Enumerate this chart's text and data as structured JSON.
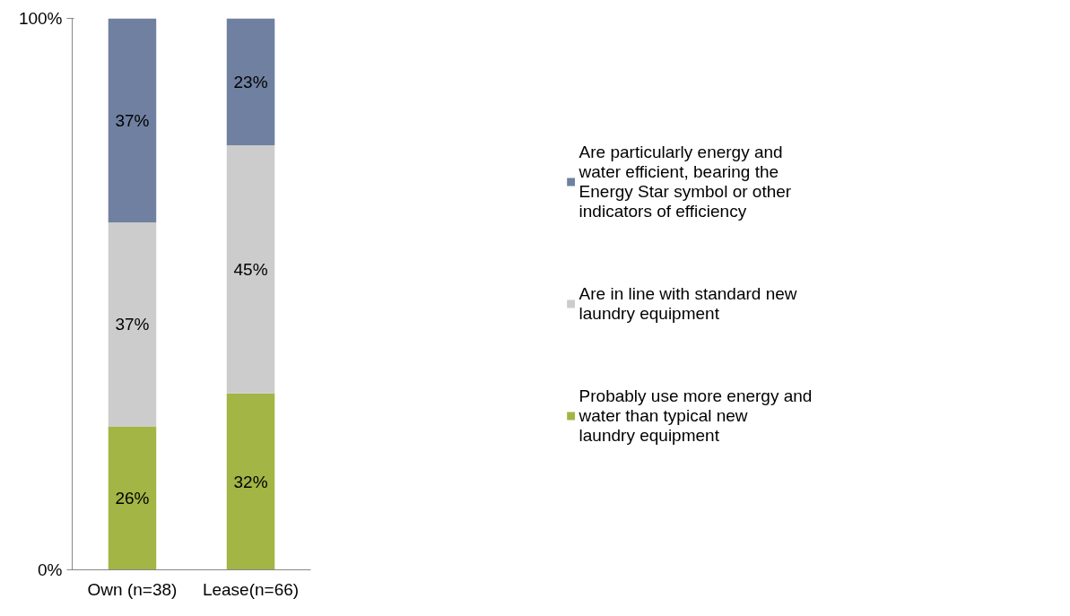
{
  "chart_data": {
    "type": "bar",
    "stacked": true,
    "categories": [
      "Own (n=38)",
      "Lease(n=66)"
    ],
    "series": [
      {
        "name": "Probably use more energy and water than typical new laundry equipment",
        "color": "#a2b545",
        "values": [
          26,
          32
        ],
        "value_labels": [
          "26%",
          "32%"
        ]
      },
      {
        "name": "Are in line with standard new laundry equipment",
        "color": "#cccccc",
        "values": [
          37,
          45
        ],
        "value_labels": [
          "37%",
          "45%"
        ]
      },
      {
        "name": "Are particularly energy and water efficient, bearing the Energy Star symbol or other indicators of efficiency",
        "color": "#6f80a1",
        "values": [
          37,
          23
        ],
        "value_labels": [
          "37%",
          "23%"
        ]
      }
    ],
    "ylim": [
      0,
      100
    ],
    "yticks": [
      {
        "value": 0,
        "label": "0%"
      },
      {
        "value": 100,
        "label": "100%"
      }
    ],
    "grid": false,
    "legend": "right"
  }
}
